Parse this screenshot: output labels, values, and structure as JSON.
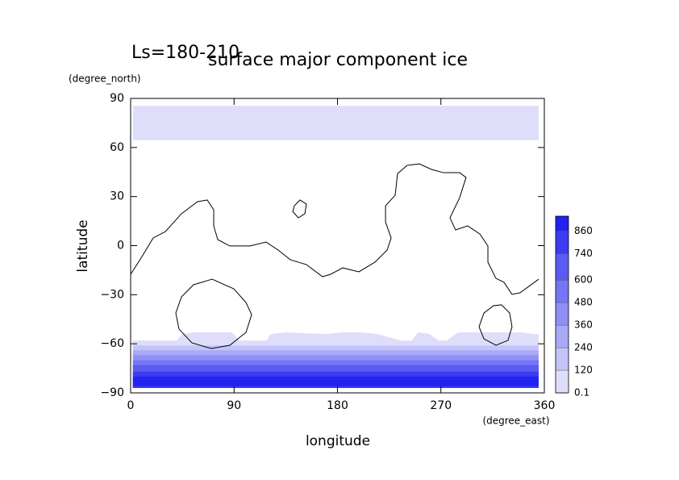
{
  "chart_data": {
    "type": "contour_map",
    "title": "surface major component ice",
    "subtitle": "Ls=180-210",
    "x_label": "longitude",
    "y_label": "latitude",
    "x_unit": "(degree_east)",
    "y_unit": "(degree_north)",
    "xlim": [
      0,
      360
    ],
    "xticks": [
      0,
      90,
      180,
      270,
      360
    ],
    "ylim": [
      -90,
      90
    ],
    "yticks": [
      {
        "value": -90,
        "label": "−90"
      },
      {
        "value": -60,
        "label": "−60"
      },
      {
        "value": -30,
        "label": "−30"
      },
      0,
      30,
      60,
      90
    ],
    "clim": [
      0.1,
      940
    ],
    "cticks": [
      0.1,
      120,
      240,
      360,
      480,
      600,
      740,
      860
    ],
    "colormap": [
      "#dedefb",
      "#1010f0"
    ],
    "filled_regions": [
      {
        "level": 0.1,
        "lon": [
          2,
          355,
          355,
          2
        ],
        "lat": [
          85.5,
          85.5,
          64.5,
          64.5
        ]
      },
      {
        "level": 0.1,
        "lon": [
          2,
          40,
          45,
          55,
          88,
          95,
          118,
          122,
          135,
          150,
          170,
          185,
          200,
          215,
          235,
          245,
          250,
          260,
          268,
          275,
          285,
          300,
          340,
          350,
          355,
          355,
          2
        ],
        "lat": [
          -58,
          -58,
          -54,
          -53,
          -53,
          -58,
          -58,
          -54,
          -53,
          -53.5,
          -54,
          -53,
          -53,
          -54,
          -58,
          -58,
          -53,
          -54,
          -58,
          -58,
          -53,
          -53,
          -53,
          -54,
          -54,
          -87,
          -87
        ]
      },
      {
        "level": 120,
        "lon": [
          2,
          355,
          355,
          2
        ],
        "lat": [
          -61,
          -61,
          -87,
          -87
        ]
      },
      {
        "level": 240,
        "lon": [
          2,
          355,
          355,
          2
        ],
        "lat": [
          -64,
          -64,
          -87,
          -87
        ]
      },
      {
        "level": 360,
        "lon": [
          2,
          355,
          355,
          2
        ],
        "lat": [
          -67,
          -67,
          -87,
          -87
        ]
      },
      {
        "level": 480,
        "lon": [
          2,
          355,
          355,
          2
        ],
        "lat": [
          -70,
          -70,
          -87,
          -87
        ]
      },
      {
        "level": 600,
        "lon": [
          2,
          355,
          355,
          2
        ],
        "lat": [
          -73,
          -73,
          -87,
          -87
        ]
      },
      {
        "level": 740,
        "lon": [
          2,
          355,
          355,
          2
        ],
        "lat": [
          -77,
          -77,
          -87,
          -87
        ]
      },
      {
        "level": 860,
        "lon": [
          2,
          355,
          355,
          2
        ],
        "lat": [
          -80,
          -80,
          -86,
          -86
        ]
      }
    ],
    "contours": [
      {
        "lon": [
          0,
          9.1,
          19.6,
          30.2,
          44.2,
          58.2,
          66.7,
          72.3,
          72.3,
          75.8,
          86.3,
          103.9,
          117.9,
          128.4,
          138.9,
          153,
          167,
          174,
          184.6,
          198.6,
          212.6,
          223.2,
          226.7,
          221.8,
          221.8,
          230.2,
          232.3,
          240.7,
          251.2,
          261.8,
          272.3,
          286.3,
          291.9,
          286.3,
          277.9,
          282.8,
          293.3,
          303.9,
          310.9,
          310.9,
          317.9,
          324.9,
          331.9,
          338.9,
          349.5,
          355.1
        ],
        "lat": [
          -17.5,
          -7.6,
          4.7,
          8.6,
          19.5,
          26.9,
          27.9,
          21.9,
          12.1,
          3.7,
          -0.2,
          -0.2,
          2.2,
          -2.7,
          -8.6,
          -11.6,
          -19,
          -17.5,
          -13.6,
          -16,
          -10.1,
          -2.7,
          4.7,
          14.5,
          24.4,
          30.8,
          44.1,
          49.1,
          50,
          46.6,
          44.6,
          44.6,
          41.7,
          29.3,
          17,
          9.6,
          12.1,
          7.1,
          -0.2,
          -10.1,
          -20,
          -22.4,
          -29.8,
          -28.8,
          -23.4,
          -20.5
        ]
      },
      {
        "lon": [
          142.5,
          147.4,
          153,
          151.6,
          146,
          141.1,
          142.5
        ],
        "lat": [
          24.4,
          27.9,
          25.4,
          19.5,
          17,
          20.7,
          24.4
        ]
      },
      {
        "lon": [
          70.9,
          89.8,
          100.4,
          105.3,
          100.4,
          86.3,
          70.2,
          53.3,
          42.1,
          39.3,
          44.2,
          54.7,
          70.9
        ],
        "lat": [
          -20.5,
          -26.4,
          -34.8,
          -42.2,
          -53,
          -60.9,
          -62.9,
          -59.4,
          -51,
          -41.2,
          -31.3,
          -23.9,
          -20.5
        ]
      },
      {
        "lon": [
          322.8,
          329.8,
          331.9,
          328.4,
          317.9,
          307.4,
          303.2,
          307.4,
          315.8,
          322.8
        ],
        "lat": [
          -36.2,
          -41.2,
          -49.6,
          -57.9,
          -60.9,
          -56.9,
          -49.6,
          -41.2,
          -36.7,
          -36.2
        ]
      }
    ]
  }
}
